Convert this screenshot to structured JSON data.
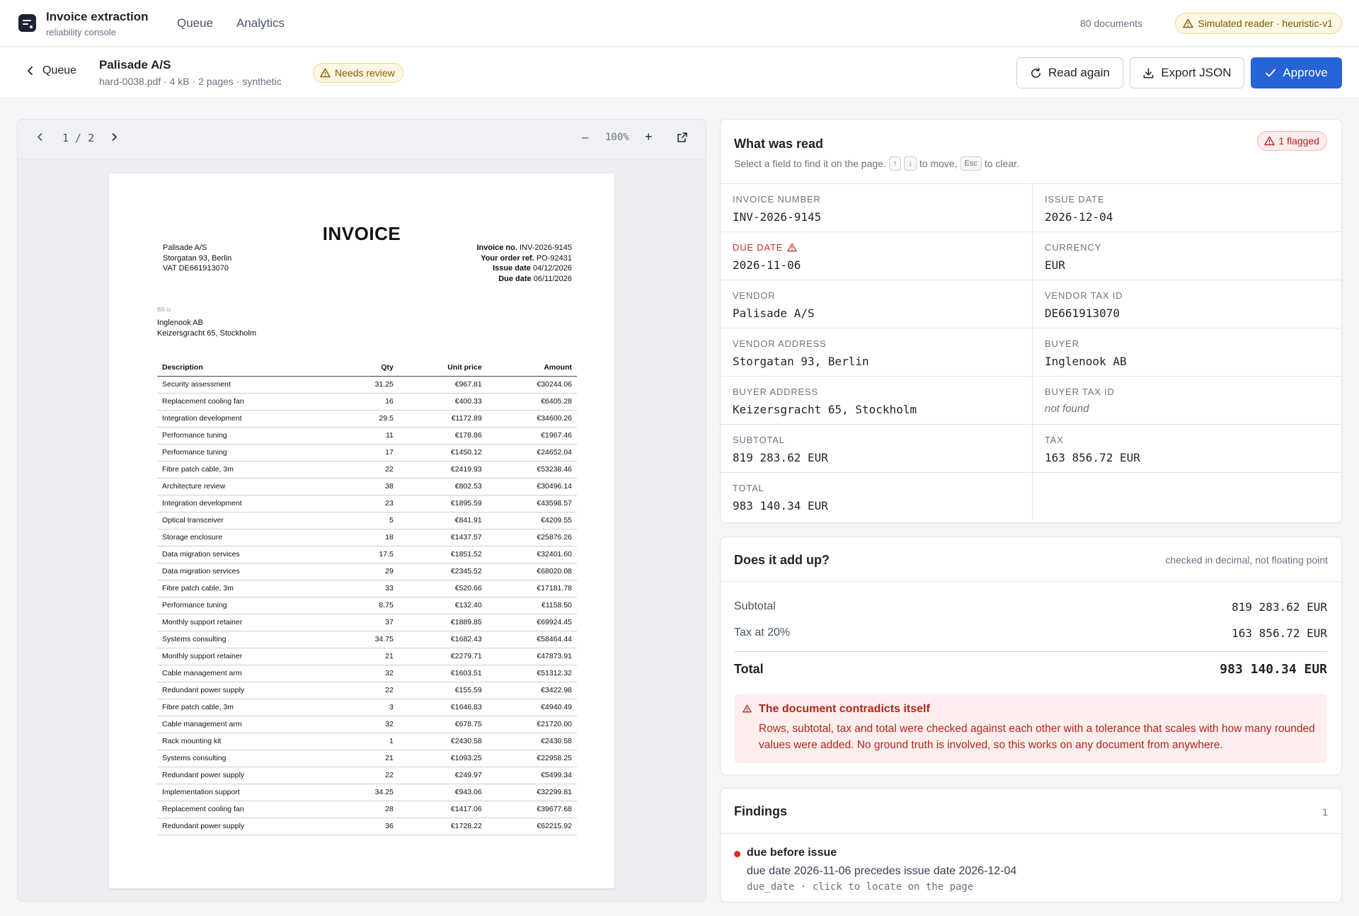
{
  "app": {
    "title": "Invoice extraction",
    "subtitle": "reliability console",
    "nav": [
      "Queue",
      "Analytics"
    ],
    "doc_count": "80 documents",
    "reader_badge": "Simulated reader · heuristic-v1"
  },
  "header": {
    "back_label": "Queue",
    "doc_title": "Palisade A/S",
    "doc_meta": "hard-0038.pdf · 4 kB · 2 pages · synthetic",
    "status_badge": "Needs review",
    "buttons": {
      "read_again": "Read again",
      "export": "Export JSON",
      "approve": "Approve"
    }
  },
  "viewer": {
    "page_indicator": "1 / 2",
    "zoom": "100%"
  },
  "invoice": {
    "title": "INVOICE",
    "seller": [
      "Palisade A/S",
      "Storgatan 93, Berlin",
      "VAT DE661913070"
    ],
    "meta": [
      {
        "label": "Invoice no.",
        "value": "INV-2026-9145"
      },
      {
        "label": "Your order ref.",
        "value": "PO-92431"
      },
      {
        "label": "Issue date",
        "value": "04/12/2026"
      },
      {
        "label": "Due date",
        "value": "06/11/2026"
      }
    ],
    "bill_to_label": "Bill to",
    "bill_to": [
      "Inglenook AB",
      "Keizersgracht 65, Stockholm"
    ],
    "columns": [
      "Description",
      "Qty",
      "Unit price",
      "Amount"
    ],
    "rows": [
      [
        "Security assessment",
        "31.25",
        "€967.81",
        "€30244.06"
      ],
      [
        "Replacement cooling fan",
        "16",
        "€400.33",
        "€6405.28"
      ],
      [
        "Integration development",
        "29.5",
        "€1172.89",
        "€34600.26"
      ],
      [
        "Performance tuning",
        "11",
        "€178.86",
        "€1967.46"
      ],
      [
        "Performance tuning",
        "17",
        "€1450.12",
        "€24652.04"
      ],
      [
        "Fibre patch cable, 3m",
        "22",
        "€2419.93",
        "€53238.46"
      ],
      [
        "Architecture review",
        "38",
        "€802.53",
        "€30496.14"
      ],
      [
        "Integration development",
        "23",
        "€1895.59",
        "€43598.57"
      ],
      [
        "Optical transceiver",
        "5",
        "€841.91",
        "€4209.55"
      ],
      [
        "Storage enclosure",
        "18",
        "€1437.57",
        "€25876.26"
      ],
      [
        "Data migration services",
        "17.5",
        "€1851.52",
        "€32401.60"
      ],
      [
        "Data migration services",
        "29",
        "€2345.52",
        "€68020.08"
      ],
      [
        "Fibre patch cable, 3m",
        "33",
        "€520.66",
        "€17181.78"
      ],
      [
        "Performance tuning",
        "8.75",
        "€132.40",
        "€1158.50"
      ],
      [
        "Monthly support retainer",
        "37",
        "€1889.85",
        "€69924.45"
      ],
      [
        "Systems consulting",
        "34.75",
        "€1682.43",
        "€58464.44"
      ],
      [
        "Monthly support retainer",
        "21",
        "€2279.71",
        "€47873.91"
      ],
      [
        "Cable management arm",
        "32",
        "€1603.51",
        "€51312.32"
      ],
      [
        "Redundant power supply",
        "22",
        "€155.59",
        "€3422.98"
      ],
      [
        "Fibre patch cable, 3m",
        "3",
        "€1646.83",
        "€4940.49"
      ],
      [
        "Cable management arm",
        "32",
        "€678.75",
        "€21720.00"
      ],
      [
        "Rack mounting kit",
        "1",
        "€2430.58",
        "€2430.58"
      ],
      [
        "Systems consulting",
        "21",
        "€1093.25",
        "€22958.25"
      ],
      [
        "Redundant power supply",
        "22",
        "€249.97",
        "€5499.34"
      ],
      [
        "Implementation support",
        "34.25",
        "€943.06",
        "€32299.81"
      ],
      [
        "Replacement cooling fan",
        "28",
        "€1417.06",
        "€39677.68"
      ],
      [
        "Redundant power supply",
        "36",
        "€1728.22",
        "€62215.92"
      ]
    ]
  },
  "extracted": {
    "title": "What was read",
    "hint_before": "Select a field to find it on the page.",
    "key_up": "↑",
    "key_down": "↓",
    "hint_middle": "to move,",
    "key_esc": "Esc",
    "hint_after": "to clear.",
    "flag_badge": "1 flagged",
    "fields": [
      {
        "label": "INVOICE NUMBER",
        "value": "INV-2026-9145"
      },
      {
        "label": "ISSUE DATE",
        "value": "2026-12-04"
      },
      {
        "label": "DUE DATE",
        "value": "2026-11-06",
        "flagged": true
      },
      {
        "label": "CURRENCY",
        "value": "EUR"
      },
      {
        "label": "VENDOR",
        "value": "Palisade A/S"
      },
      {
        "label": "VENDOR TAX ID",
        "value": "DE661913070"
      },
      {
        "label": "VENDOR ADDRESS",
        "value": "Storgatan 93, Berlin"
      },
      {
        "label": "BUYER",
        "value": "Inglenook AB"
      },
      {
        "label": "BUYER ADDRESS",
        "value": "Keizersgracht 65, Stockholm"
      },
      {
        "label": "BUYER TAX ID",
        "value": "not found",
        "missing": true
      },
      {
        "label": "SUBTOTAL",
        "value": "819 283.62 EUR"
      },
      {
        "label": "TAX",
        "value": "163 856.72 EUR"
      },
      {
        "label": "TOTAL",
        "value": "983 140.34 EUR"
      }
    ]
  },
  "check": {
    "title": "Does it add up?",
    "note": "checked in decimal, not floating point",
    "subtotal_label": "Subtotal",
    "subtotal_value": "819 283.62 EUR",
    "tax_label": "Tax at 20%",
    "tax_value": "163 856.72 EUR",
    "total_label": "Total",
    "total_value": "983 140.34 EUR",
    "alert_title": "The document contradicts itself",
    "alert_body": "Rows, subtotal, tax and total were checked against each other with a tolerance that scales with how many rounded values were added. No ground truth is involved, so this works on any document from anywhere."
  },
  "findings": {
    "title": "Findings",
    "count": "1",
    "items": [
      {
        "title": "due before issue",
        "detail": "due date 2026-11-06 precedes issue date 2026-12-04",
        "meta": "due_date · click to locate on the page",
        "color": "#d92d20"
      }
    ]
  }
}
